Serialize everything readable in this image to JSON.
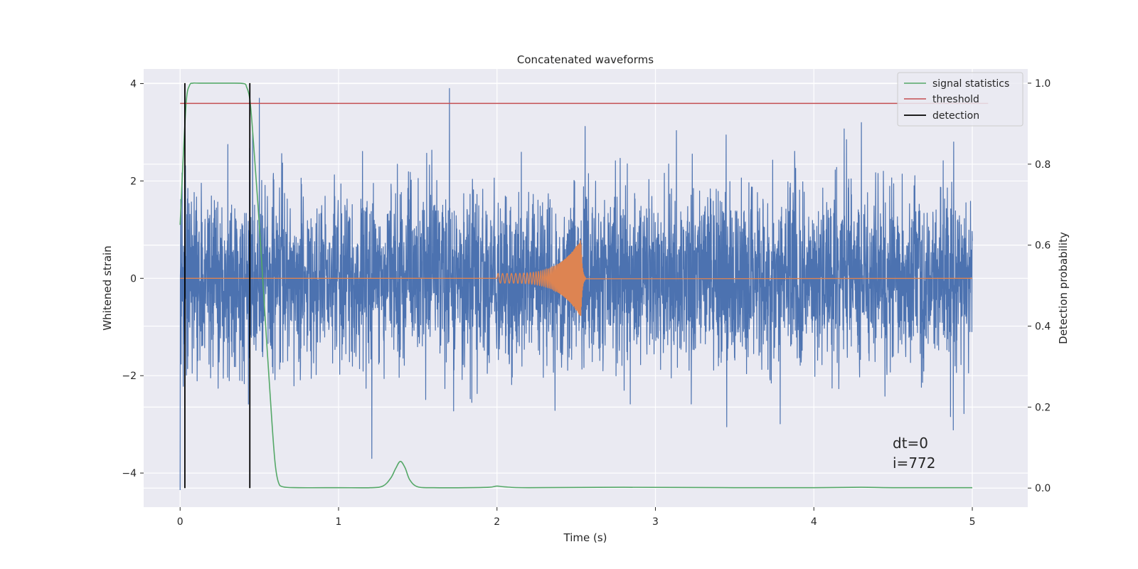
{
  "chart_data": {
    "type": "line",
    "title": "Concatenated waveforms",
    "xlabel": "Time (s)",
    "ylabel": "Whitened strain",
    "y2label": "Detection probability",
    "xlim": [
      -0.23,
      5.35
    ],
    "ylim": [
      -4.7,
      4.3
    ],
    "y2lim": [
      -0.047,
      1.035
    ],
    "xticks": [
      0,
      1,
      2,
      3,
      4,
      5
    ],
    "yticks": [
      -4,
      -2,
      0,
      2,
      4
    ],
    "y2ticks": [
      0.0,
      0.2,
      0.4,
      0.6,
      0.8,
      1.0
    ],
    "ytick_labels": [
      "−4",
      "−2",
      "0",
      "2",
      "4"
    ],
    "y2tick_labels": [
      "0.0",
      "0.2",
      "0.4",
      "0.6",
      "0.8",
      "1.0"
    ],
    "grid": true,
    "legend_position": "upper right",
    "legend": [
      "signal statistics",
      "threshold",
      "detection"
    ],
    "annotations": [
      "dt=0",
      "i=772"
    ],
    "colors": {
      "strain": "#4c72b0",
      "template": "#dd8452",
      "statistic": "#55a868",
      "threshold": "#c44e52",
      "detection": "#000000",
      "background": "#eaeaf2",
      "grid": "#ffffff"
    },
    "series": [
      {
        "name": "",
        "axis": "left",
        "kind": "noise",
        "x_range": [
          0,
          5
        ],
        "band_sigma": 0.95,
        "min": -4.35,
        "max": 3.9,
        "sample_peaks": [
          [
            0.0,
            -4.35
          ],
          [
            1.7,
            3.9
          ],
          [
            1.21,
            -3.7
          ],
          [
            4.3,
            3.2
          ],
          [
            3.45,
            -3.05
          ],
          [
            0.5,
            3.7
          ]
        ]
      },
      {
        "name": "",
        "axis": "left",
        "kind": "chirp",
        "x_range": [
          0,
          5
        ],
        "chirp_start": 2.0,
        "chirp_peak": 2.53,
        "chirp_end": 2.56,
        "start_amplitude": 0.1,
        "peak_amplitude": 0.8
      },
      {
        "name": "signal statistics",
        "axis": "right",
        "x": [
          0.0,
          0.02,
          0.04,
          0.06,
          0.08,
          0.12,
          0.3,
          0.4,
          0.42,
          0.44,
          0.46,
          0.5,
          0.54,
          0.58,
          0.6,
          0.62,
          0.65,
          0.75,
          1.0,
          1.2,
          1.28,
          1.33,
          1.36,
          1.39,
          1.42,
          1.45,
          1.5,
          1.6,
          1.8,
          1.95,
          2.0,
          2.05,
          2.2,
          2.8,
          3.5,
          4.0,
          4.3,
          4.5,
          5.0
        ],
        "y": [
          0.65,
          0.82,
          0.96,
          0.995,
          1.0,
          1.0,
          1.0,
          0.999,
          0.99,
          0.96,
          0.87,
          0.65,
          0.4,
          0.16,
          0.06,
          0.015,
          0.003,
          0.001,
          0.001,
          0.001,
          0.005,
          0.025,
          0.048,
          0.066,
          0.05,
          0.02,
          0.003,
          0.001,
          0.001,
          0.002,
          0.005,
          0.003,
          0.001,
          0.002,
          0.001,
          0.001,
          0.002,
          0.001,
          0.001
        ]
      },
      {
        "name": "threshold",
        "axis": "right",
        "x": [
          0,
          5.1
        ],
        "y": [
          0.95,
          0.95
        ]
      }
    ],
    "detections": [
      0.03,
      0.44
    ]
  }
}
